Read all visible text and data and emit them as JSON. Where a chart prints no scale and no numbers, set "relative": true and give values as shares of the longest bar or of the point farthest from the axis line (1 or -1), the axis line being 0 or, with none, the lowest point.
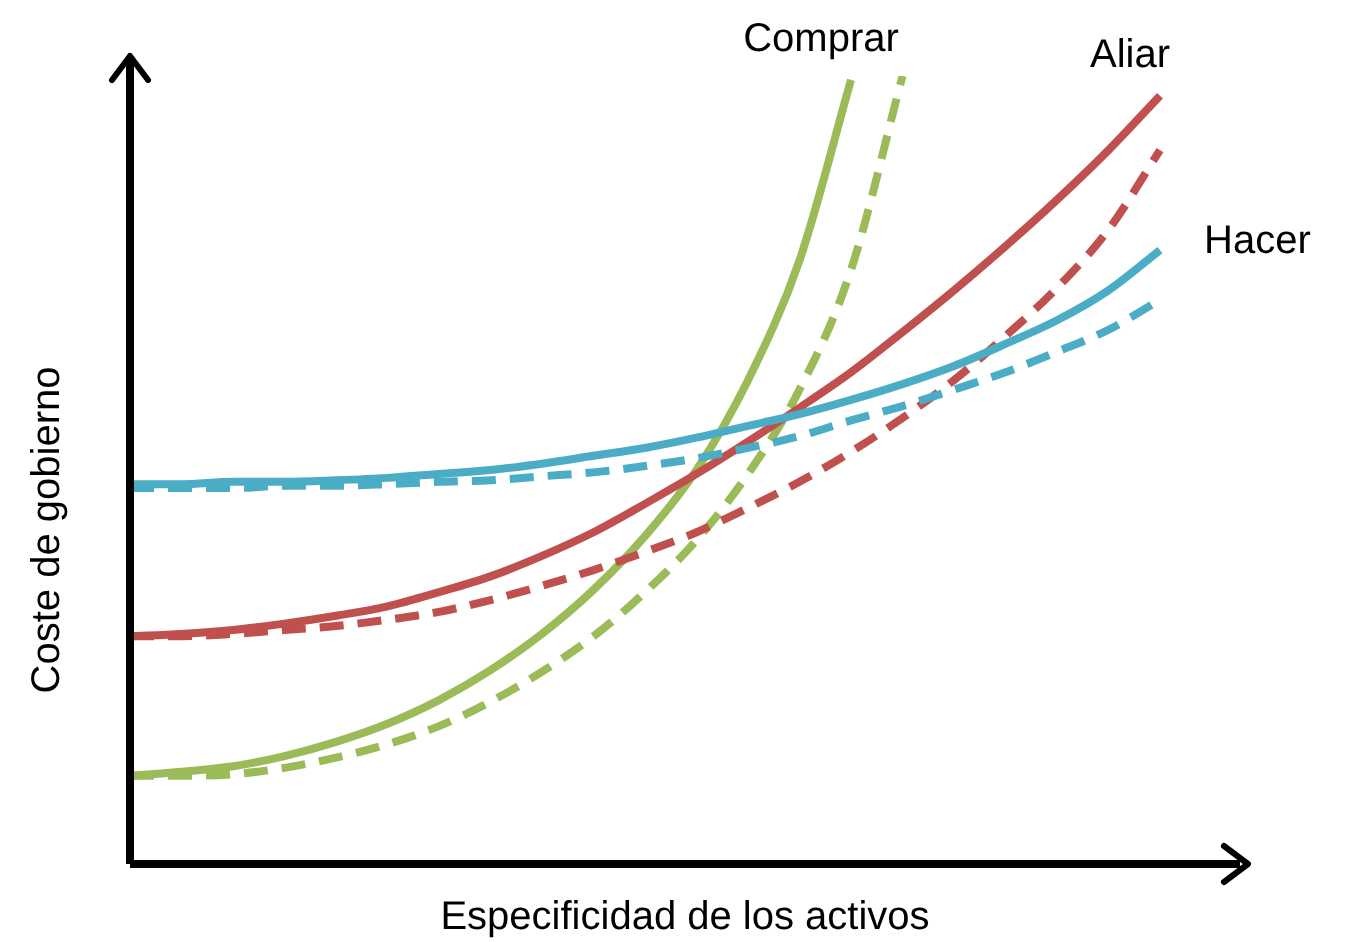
{
  "chart_data": {
    "type": "line",
    "relative": true,
    "xlabel": "Especificidad de los activos",
    "ylabel": "Coste de gobierno",
    "legend": false,
    "marker": "none",
    "categories": [
      null,
      null,
      null,
      null,
      null,
      null,
      null,
      null,
      null,
      null,
      null,
      null,
      null,
      null,
      null,
      null,
      null,
      null,
      null,
      null,
      null
    ],
    "series": [
      {
        "name": "Hacer",
        "color": "#4bacc6",
        "line_style": "solid",
        "values": [
          0.482,
          0.482,
          0.485,
          0.485,
          0.487,
          0.49,
          0.495,
          0.5,
          0.508,
          0.518,
          0.528,
          0.541,
          0.556,
          0.571,
          0.589,
          0.609,
          0.632,
          0.66,
          0.69,
          0.728,
          0.779
        ]
      },
      {
        "color": "#4bacc6",
        "line_style": "dashed",
        "values": [
          0.477,
          0.477,
          0.477,
          0.48,
          0.48,
          0.482,
          0.485,
          0.487,
          0.492,
          0.497,
          0.505,
          0.515,
          0.528,
          0.543,
          0.563,
          0.581,
          0.602,
          0.624,
          0.65,
          0.678,
          0.716
        ]
      },
      {
        "name": "Aliar",
        "color": "#c0504d",
        "line_style": "solid",
        "values": [
          0.289,
          0.292,
          0.297,
          0.305,
          0.315,
          0.327,
          0.345,
          0.365,
          0.391,
          0.421,
          0.457,
          0.495,
          0.536,
          0.579,
          0.624,
          0.675,
          0.728,
          0.784,
          0.843,
          0.906,
          0.975
        ]
      },
      {
        "color": "#c0504d",
        "line_style": "dashed",
        "values": [
          0.289,
          0.289,
          0.292,
          0.297,
          0.302,
          0.31,
          0.32,
          0.335,
          0.353,
          0.373,
          0.396,
          0.421,
          0.452,
          0.485,
          0.523,
          0.566,
          0.614,
          0.67,
          0.731,
          0.805,
          0.906
        ]
      },
      {
        "name": "Comprar",
        "color": "#9bbb59",
        "line_style": "solid",
        "values": [
          0.112,
          0.117,
          0.124,
          0.137,
          0.155,
          0.178,
          0.208,
          0.246,
          0.292,
          0.348,
          0.416,
          0.5,
          0.614,
          0.766,
          0.995,
          null,
          null,
          null,
          null,
          null,
          null
        ]
      },
      {
        "color": "#9bbb59",
        "line_style": "dashed",
        "values": [
          0.112,
          0.112,
          0.114,
          0.122,
          0.135,
          0.152,
          0.175,
          0.206,
          0.244,
          0.289,
          0.345,
          0.411,
          0.495,
          0.602,
          0.754,
          1.0,
          null,
          null,
          null,
          null,
          null
        ]
      }
    ]
  }
}
